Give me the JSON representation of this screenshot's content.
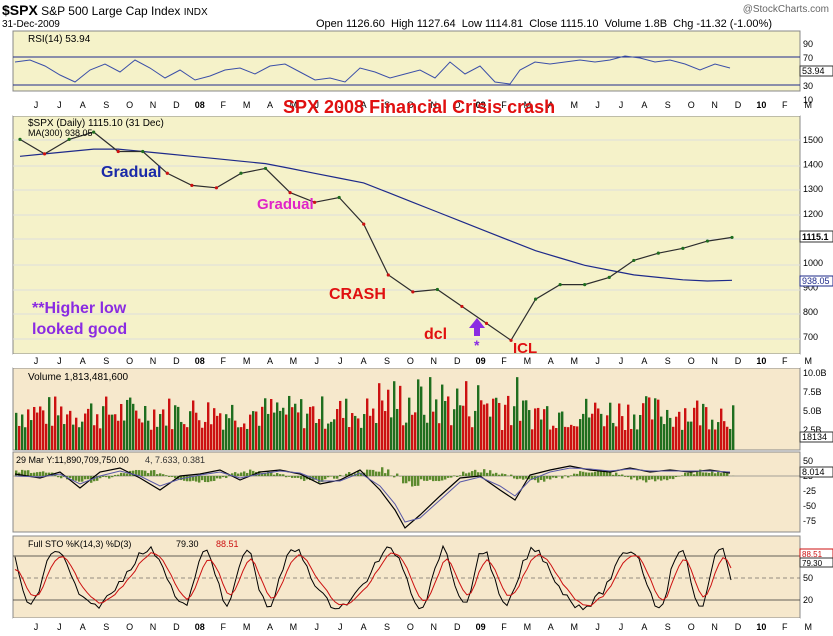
{
  "header": {
    "symbol": "$SPX",
    "name": "S&P 500 Large Cap Index",
    "exchange": "INDX",
    "date": "31-Dec-2009",
    "ohlc": "Open 1126.60  High 1127.64  Low 1114.81  Close 1115.10  Volume 1.8B  Chg -11.32 (-1.00%)",
    "brand": "@StockCharts.com"
  },
  "panels": {
    "rsi": {
      "label": "RSI(14) 53.94",
      "last_value": "53.94",
      "ticks": [
        "90",
        "70",
        "50",
        "30",
        "10"
      ],
      "levels": [
        70,
        30
      ]
    },
    "price": {
      "label": "$SPX (Daily) 1115.10 (31 Dec)",
      "ma_label": "MA(300) 938.05",
      "last_value": "1115.1",
      "ma_value": "938.05",
      "ticks": [
        "1500",
        "1400",
        "1300",
        "1200",
        "1100",
        "1000",
        "900",
        "800",
        "700"
      ]
    },
    "volume": {
      "label": "Volume 1,813,481,600",
      "last_value": "18134",
      "ticks": [
        "10.0B",
        "7.5B",
        "5.0B",
        "2.5B"
      ]
    },
    "macd": {
      "label": "29 Mar Y:11,890,709,750.00",
      "values": "4, 7.633, 0.381",
      "last_value": "8.014",
      "ticks": [
        "50",
        "25",
        "-25",
        "-50",
        "-75"
      ]
    },
    "sto": {
      "label": "Full STO %K(14,3) %D(3)",
      "k_value": "79.30",
      "d_value": "88.51",
      "last_k": "79.30",
      "last_d": "88.51",
      "ticks": [
        "80",
        "50",
        "20"
      ]
    }
  },
  "months": [
    "J",
    "J",
    "A",
    "S",
    "O",
    "N",
    "D",
    "08",
    "F",
    "M",
    "A",
    "M",
    "J",
    "J",
    "A",
    "S",
    "O",
    "N",
    "D",
    "09",
    "F",
    "M",
    "A",
    "M",
    "J",
    "J",
    "A",
    "S",
    "O",
    "N",
    "D",
    "10",
    "F",
    "M"
  ],
  "annotations": {
    "title": "SPX 2008 Financial Crisis crash",
    "gradual1": "Gradual",
    "gradual2": "Gradual",
    "crash": "CRASH",
    "dcl": "dcl",
    "star": "*",
    "icl": "ICL",
    "higher_low_1": "**Higher low",
    "higher_low_2": "looked good"
  },
  "colors": {
    "price_bg": "#f5f2c9",
    "panel_bg": "#f6e8cc",
    "ma": "#1e2a8a",
    "up": "#1f6e1f",
    "down": "#cc1111",
    "annotation_red": "#e01010",
    "annotation_blue": "#1a2aa8",
    "annotation_magenta": "#e024c8",
    "annotation_purple": "#8a2be2"
  },
  "chart_data": {
    "type": "line",
    "title": "",
    "x": [
      "2007-07",
      "2007-08",
      "2007-09",
      "2007-10",
      "2007-11",
      "2007-12",
      "2008-01",
      "2008-02",
      "2008-03",
      "2008-04",
      "2008-05",
      "2008-06",
      "2008-07",
      "2008-08",
      "2008-09",
      "2008-10",
      "2008-11",
      "2008-12",
      "2009-01",
      "2009-02",
      "2009-03",
      "2009-04",
      "2009-05",
      "2009-06",
      "2009-07",
      "2009-08",
      "2009-09",
      "2009-10",
      "2009-11",
      "2009-12"
    ],
    "series": [
      {
        "name": "$SPX (Daily)",
        "values": [
          1520,
          1460,
          1520,
          1550,
          1470,
          1470,
          1380,
          1330,
          1320,
          1380,
          1400,
          1300,
          1260,
          1280,
          1170,
          960,
          890,
          900,
          830,
          760,
          690,
          860,
          920,
          920,
          950,
          1020,
          1050,
          1070,
          1100,
          1115
        ]
      },
      {
        "name": "MA(300)",
        "values": [
          1450,
          1460,
          1470,
          1480,
          1480,
          1470,
          1460,
          1450,
          1440,
          1430,
          1420,
          1400,
          1380,
          1360,
          1340,
          1300,
          1260,
          1220,
          1180,
          1140,
          1100,
          1060,
          1030,
          1000,
          980,
          960,
          950,
          940,
          935,
          938
        ]
      }
    ],
    "ylim": [
      650,
      1600
    ],
    "volume_ylim": [
      0,
      10
    ],
    "rsi_ylim": [
      0,
      100
    ],
    "sto_ylim": [
      0,
      100
    ]
  }
}
